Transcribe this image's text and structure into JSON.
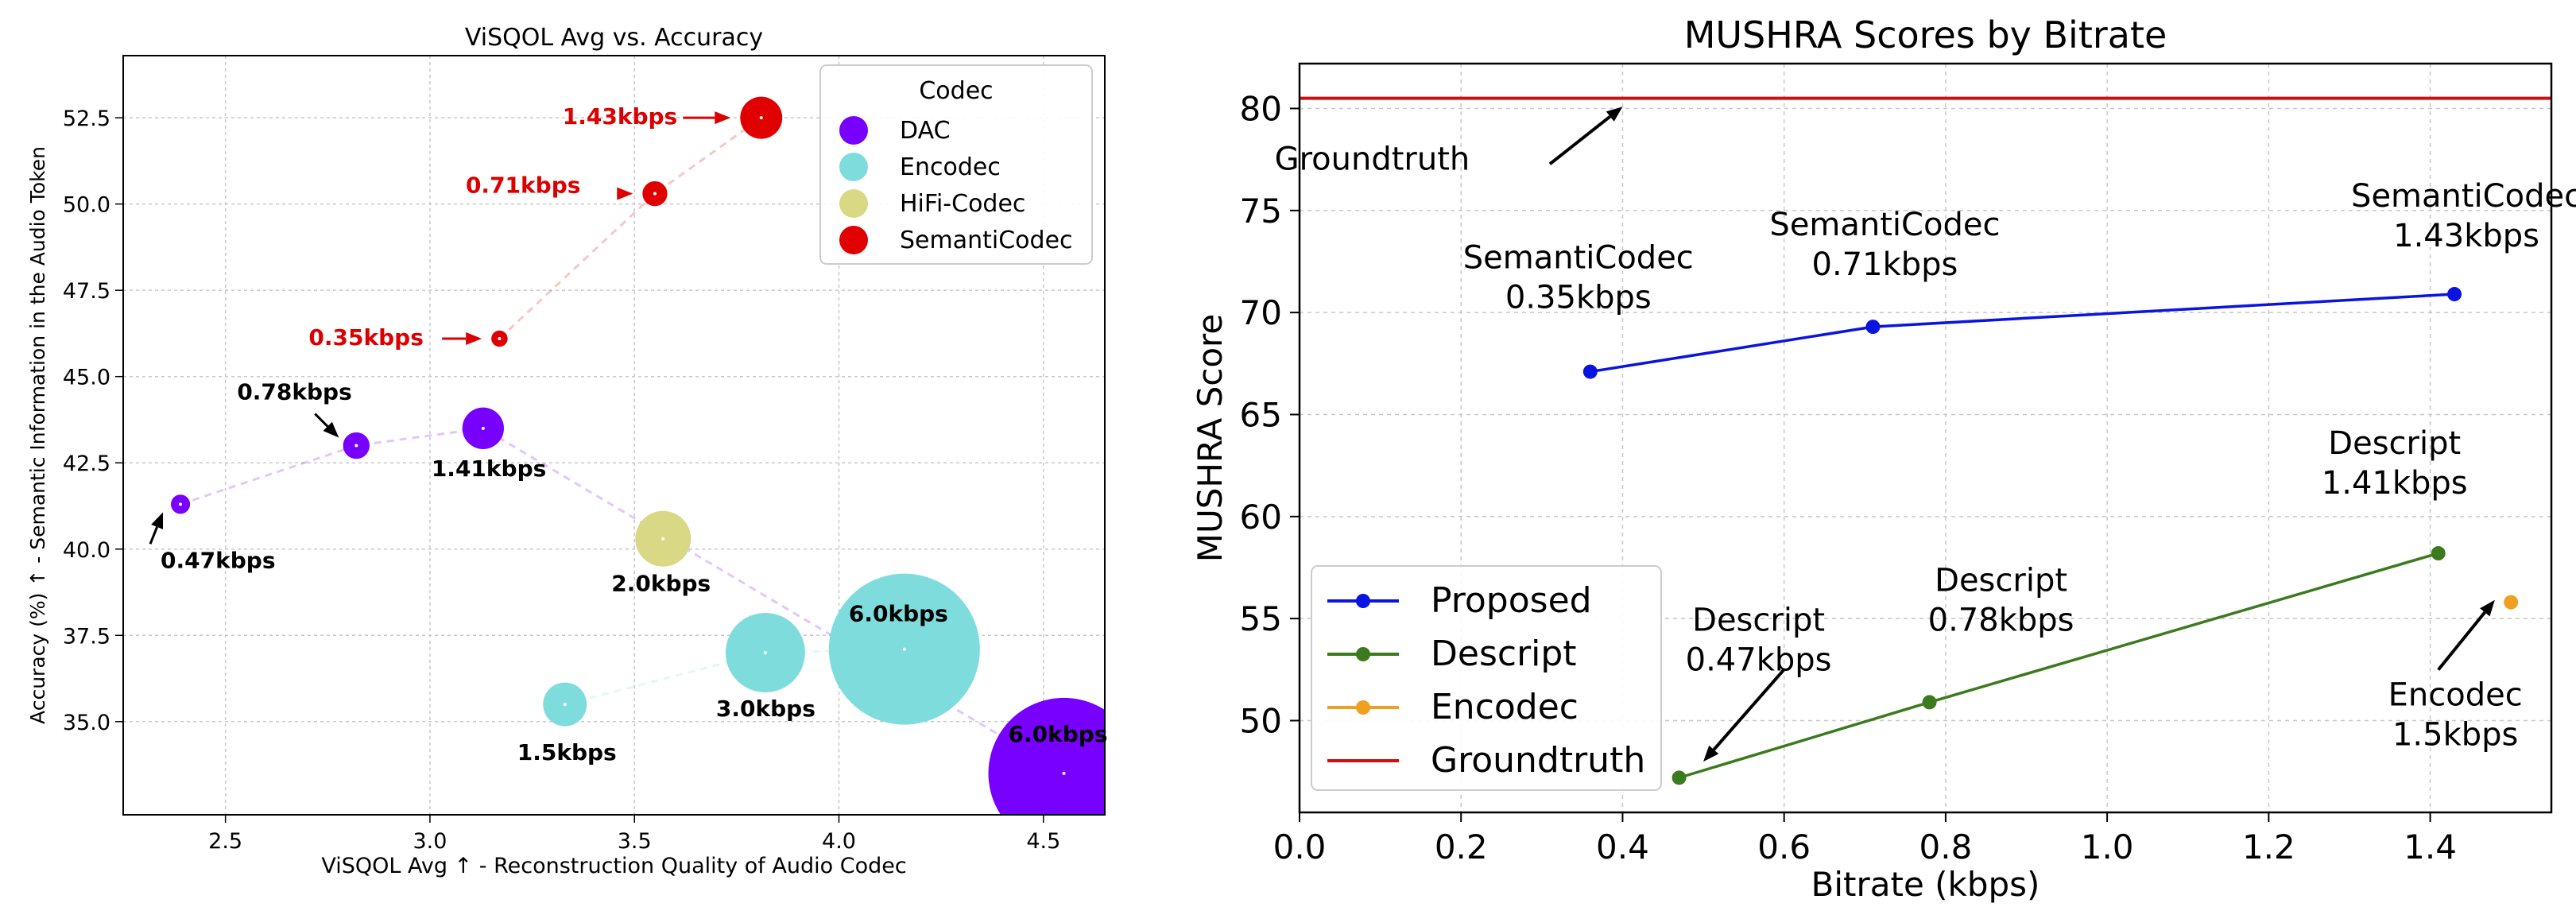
{
  "chart_data": [
    {
      "type": "scatter",
      "title": "ViSQOL Avg vs. Accuracy",
      "xlabel": "ViSQOL Avg ↑ - Reconstruction Quality of Audio Codec",
      "ylabel": "Accuracy (%) ↑ - Semantic Information in the Audio Token",
      "xlim": [
        2.25,
        4.65
      ],
      "ylim": [
        32.3,
        54.3
      ],
      "xticks": [
        "2.5",
        "3.0",
        "3.5",
        "4.0",
        "4.5"
      ],
      "yticks": [
        "35.0",
        "37.5",
        "40.0",
        "42.5",
        "45.0",
        "47.5",
        "50.0",
        "52.5"
      ],
      "grid": true,
      "legend": {
        "title": "Codec",
        "position": "top-right"
      },
      "series": [
        {
          "name": "DAC",
          "color": "#7700ff",
          "points": [
            {
              "x": 2.39,
              "y": 41.3,
              "bitrate": 0.47,
              "label": "0.47kbps"
            },
            {
              "x": 2.82,
              "y": 43.0,
              "bitrate": 0.78,
              "label": "0.78kbps"
            },
            {
              "x": 3.13,
              "y": 43.5,
              "bitrate": 1.41,
              "label": "1.41kbps"
            },
            {
              "x": 4.55,
              "y": 33.5,
              "bitrate": 6.0,
              "label": "6.0kbps"
            }
          ]
        },
        {
          "name": "Encodec",
          "color": "#7fdcdc",
          "points": [
            {
              "x": 3.33,
              "y": 35.5,
              "bitrate": 1.5,
              "label": "1.5kbps"
            },
            {
              "x": 3.82,
              "y": 37.0,
              "bitrate": 3.0,
              "label": "3.0kbps"
            },
            {
              "x": 4.16,
              "y": 37.1,
              "bitrate": 6.0,
              "label": "6.0kbps"
            }
          ]
        },
        {
          "name": "HiFi-Codec",
          "color": "#d8d885",
          "points": [
            {
              "x": 3.57,
              "y": 40.3,
              "bitrate": 2.0,
              "label": "2.0kbps"
            }
          ]
        },
        {
          "name": "SemantiCodec",
          "color": "#e00000",
          "points": [
            {
              "x": 3.17,
              "y": 46.1,
              "bitrate": 0.35,
              "label": "0.35kbps"
            },
            {
              "x": 3.55,
              "y": 50.3,
              "bitrate": 0.71,
              "label": "0.71kbps"
            },
            {
              "x": 3.81,
              "y": 52.5,
              "bitrate": 1.43,
              "label": "1.43kbps"
            }
          ]
        }
      ]
    },
    {
      "type": "line",
      "title": "MUSHRA Scores by Bitrate",
      "xlabel": "Bitrate (kbps)",
      "ylabel": "MUSHRA Score",
      "xlim": [
        0.0,
        1.55
      ],
      "ylim": [
        45.5,
        82.2
      ],
      "xticks": [
        "0.0",
        "0.2",
        "0.4",
        "0.6",
        "0.8",
        "1.0",
        "1.2",
        "1.4"
      ],
      "yticks": [
        "50",
        "55",
        "60",
        "65",
        "70",
        "75",
        "80"
      ],
      "grid": true,
      "legend": {
        "position": "bottom-left"
      },
      "series": [
        {
          "name": "Proposed",
          "color": "#0a14e0",
          "points": [
            {
              "x": 0.36,
              "y": 67.1,
              "label": [
                "SemantiCodec",
                "0.35kbps"
              ]
            },
            {
              "x": 0.71,
              "y": 69.3,
              "label": [
                "SemantiCodec",
                "0.71kbps"
              ]
            },
            {
              "x": 1.43,
              "y": 70.9,
              "label": [
                "SemantiCodec",
                "1.43kbps"
              ]
            }
          ]
        },
        {
          "name": "Descript",
          "color": "#3c7a1e",
          "points": [
            {
              "x": 0.47,
              "y": 47.2,
              "label": [
                "Descript",
                "0.47kbps"
              ]
            },
            {
              "x": 0.78,
              "y": 50.9,
              "label": [
                "Descript",
                "0.78kbps"
              ]
            },
            {
              "x": 1.41,
              "y": 58.2,
              "label": [
                "Descript",
                "1.41kbps"
              ]
            }
          ]
        },
        {
          "name": "Encodec",
          "color": "#f0a020",
          "points": [
            {
              "x": 1.5,
              "y": 55.8,
              "label": [
                "Encodec",
                "1.5kbps"
              ]
            }
          ]
        },
        {
          "name": "Groundtruth",
          "color": "#d01010",
          "hline": 80.5,
          "label": "Groundtruth"
        }
      ]
    }
  ]
}
